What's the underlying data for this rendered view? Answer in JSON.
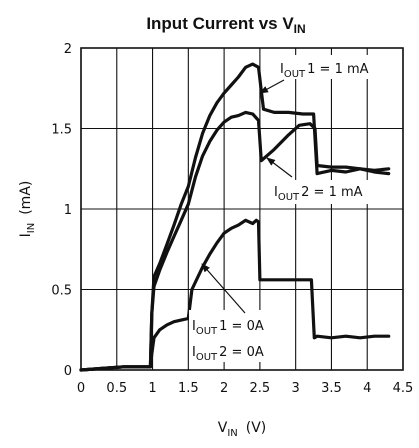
{
  "chart_data": {
    "type": "line",
    "title": {
      "text": "Input Current vs V",
      "sub": "IN"
    },
    "xlabel": {
      "main": "V",
      "sub": "IN",
      "unit": "(V)"
    },
    "ylabel": {
      "main": "I",
      "sub": "IN",
      "unit": "(mA)"
    },
    "xlim": [
      0,
      4.5
    ],
    "ylim": [
      0,
      2
    ],
    "grid": true,
    "x_ticks": [
      0,
      0.5,
      1,
      1.5,
      2,
      2.5,
      3,
      3.5,
      4,
      4.5
    ],
    "x_tick_labels": [
      "0",
      "0.5",
      "1",
      "1.5",
      "2",
      "2.5",
      "3",
      "3.5",
      "4",
      "4.5"
    ],
    "y_ticks": [
      0,
      0.5,
      1,
      1.5,
      2
    ],
    "y_tick_labels": [
      "0",
      "0.5",
      "1",
      "1.5",
      "2"
    ],
    "series": [
      {
        "x": [
          0.0,
          0.3,
          0.6,
          0.85,
          0.97,
          0.99,
          1.02,
          1.1,
          1.2,
          1.3,
          1.4,
          1.5,
          1.6,
          1.7,
          1.8,
          1.9,
          2.0,
          2.1,
          2.2,
          2.3,
          2.4,
          2.48,
          2.55,
          2.7,
          2.9,
          3.1,
          3.25,
          3.3,
          3.5,
          3.7,
          3.9,
          4.1,
          4.3
        ],
        "y": [
          0.0,
          0.01,
          0.02,
          0.02,
          0.02,
          0.35,
          0.58,
          0.66,
          0.78,
          0.9,
          1.03,
          1.14,
          1.32,
          1.47,
          1.58,
          1.66,
          1.72,
          1.77,
          1.82,
          1.88,
          1.9,
          1.88,
          1.62,
          1.6,
          1.6,
          1.59,
          1.59,
          1.22,
          1.24,
          1.23,
          1.25,
          1.24,
          1.25
        ]
      },
      {
        "x": [
          0.0,
          0.3,
          0.6,
          0.85,
          0.97,
          0.99,
          1.02,
          1.1,
          1.2,
          1.3,
          1.4,
          1.5,
          1.6,
          1.7,
          1.8,
          1.9,
          2.0,
          2.1,
          2.2,
          2.3,
          2.4,
          2.48,
          2.52,
          2.7,
          2.9,
          3.05,
          3.2,
          3.27,
          3.3,
          3.5,
          3.7,
          3.9,
          4.1,
          4.3
        ],
        "y": [
          0.0,
          0.01,
          0.02,
          0.02,
          0.02,
          0.35,
          0.52,
          0.62,
          0.73,
          0.83,
          0.93,
          1.03,
          1.2,
          1.33,
          1.42,
          1.49,
          1.54,
          1.57,
          1.58,
          1.6,
          1.59,
          1.55,
          1.3,
          1.37,
          1.46,
          1.52,
          1.53,
          1.5,
          1.27,
          1.26,
          1.26,
          1.25,
          1.23,
          1.22
        ]
      },
      {
        "x": [
          0.0,
          0.3,
          0.6,
          0.85,
          0.97,
          0.99,
          1.02,
          1.1,
          1.2,
          1.3,
          1.4,
          1.5,
          1.55,
          1.7,
          1.8,
          1.9,
          2.0,
          2.1,
          2.2,
          2.3,
          2.4,
          2.45,
          2.48,
          2.5,
          2.7,
          2.9,
          3.1,
          3.22,
          3.26,
          3.3,
          3.5,
          3.7,
          3.9,
          4.1,
          4.3
        ],
        "y": [
          0.0,
          0.01,
          0.02,
          0.02,
          0.02,
          0.1,
          0.2,
          0.25,
          0.28,
          0.3,
          0.31,
          0.32,
          0.5,
          0.64,
          0.72,
          0.79,
          0.85,
          0.88,
          0.9,
          0.93,
          0.91,
          0.93,
          0.92,
          0.56,
          0.56,
          0.56,
          0.56,
          0.56,
          0.2,
          0.21,
          0.2,
          0.21,
          0.2,
          0.21,
          0.21
        ]
      }
    ],
    "annotations": [
      {
        "label_main": "I",
        "label_sub": "OUT",
        "label_rest": "1  =  1 mA"
      },
      {
        "label_main": "I",
        "label_sub": "OUT",
        "label_rest": "2  =  1 mA"
      },
      {
        "label_main": "I",
        "label_sub": "OUT",
        "label_rest": "1  =  0A"
      },
      {
        "label_main": "I",
        "label_sub": "OUT",
        "label_rest": "2  =  0A"
      }
    ]
  }
}
